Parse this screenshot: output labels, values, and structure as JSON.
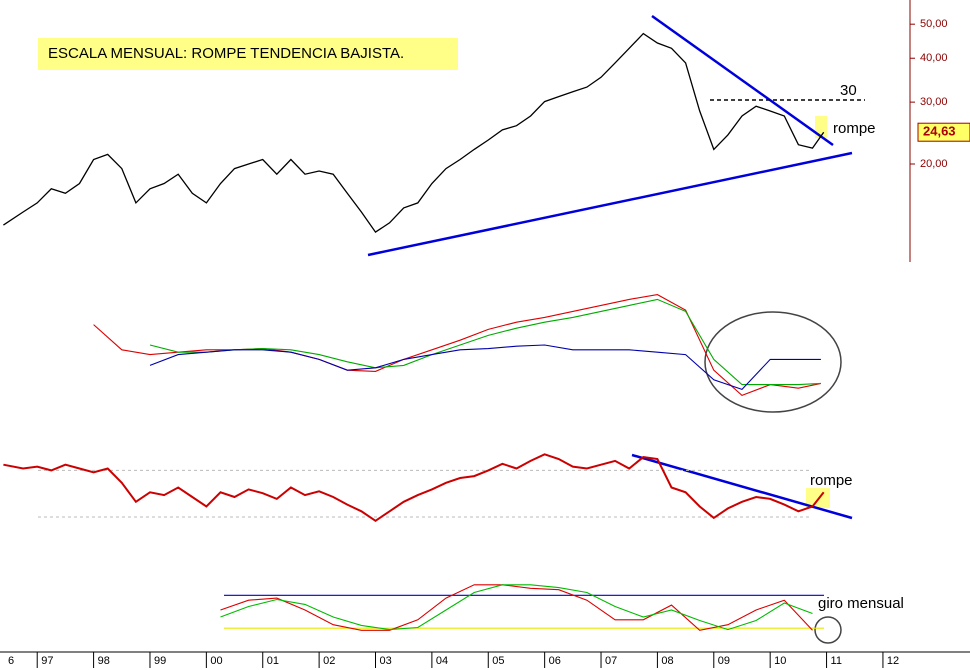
{
  "chart_data": [
    {
      "type": "line",
      "log_scale": true,
      "title": "ESCALA MENSUAL: ROMPE TENDENCIA BAJISTA.",
      "annotations": [
        "30",
        "rompe"
      ],
      "xlim": [
        1996.34,
        2012.48
      ],
      "ylim": [
        10.8,
        56.7
      ],
      "yticks": [
        {
          "value": 50,
          "label": "50,00"
        },
        {
          "value": 40,
          "label": "40,00"
        },
        {
          "value": 30,
          "label": "30,00"
        },
        {
          "value": 20,
          "label": "20,00"
        }
      ],
      "last_value_label": "24,63",
      "x": [
        1996.4,
        1996.75,
        1997,
        1997.25,
        1997.5,
        1997.75,
        1998,
        1998.25,
        1998.5,
        1998.75,
        1999,
        1999.25,
        1999.5,
        1999.75,
        2000,
        2000.25,
        2000.5,
        2000.75,
        2001,
        2001.25,
        2001.5,
        2001.75,
        2002,
        2002.25,
        2002.5,
        2002.75,
        2003,
        2003.25,
        2003.5,
        2003.75,
        2004,
        2004.25,
        2004.5,
        2004.75,
        2005,
        2005.25,
        2005.5,
        2005.75,
        2006,
        2006.25,
        2006.5,
        2006.75,
        2007,
        2007.25,
        2007.5,
        2007.75,
        2008,
        2008.25,
        2008.5,
        2008.75,
        2009,
        2009.25,
        2009.5,
        2009.75,
        2010,
        2010.25,
        2010.5,
        2010.75,
        2010.95
      ],
      "series": [
        {
          "color": "#000000",
          "values": [
            13.4,
            14.6,
            15.5,
            17.0,
            16.5,
            17.6,
            20.6,
            21.3,
            19.4,
            15.5,
            17.0,
            17.6,
            18.7,
            16.5,
            15.5,
            17.6,
            19.4,
            20.0,
            20.6,
            18.7,
            20.6,
            18.7,
            19.1,
            18.7,
            16.5,
            14.6,
            12.8,
            13.6,
            15.0,
            15.5,
            17.6,
            19.4,
            20.6,
            22.0,
            23.4,
            25.0,
            25.7,
            27.4,
            30.1,
            31.1,
            32.1,
            33.1,
            35.3,
            38.8,
            42.7,
            47.0,
            44.2,
            42.7,
            38.8,
            28.3,
            22.0,
            24.2,
            27.4,
            29.2,
            28.3,
            27.4,
            22.7,
            22.2,
            24.63
          ]
        }
      ]
    },
    {
      "type": "line",
      "xlim": [
        1996.34,
        2012.48
      ],
      "ylim": [
        0,
        100
      ],
      "x": [
        1998,
        1998.5,
        1999,
        1999.5,
        2000,
        2000.5,
        2001,
        2001.5,
        2002,
        2002.5,
        2003,
        2003.5,
        2004,
        2004.5,
        2005,
        2005.5,
        2006,
        2006.5,
        2007,
        2007.5,
        2008,
        2008.5,
        2009,
        2009.5,
        2010,
        2010.5,
        2010.9
      ],
      "series": [
        {
          "color": "#dd0000",
          "values": [
            67,
            46,
            42,
            44,
            46,
            46,
            47,
            44,
            38,
            29,
            28,
            38,
            46,
            54,
            63,
            69,
            73,
            78,
            83,
            88,
            92,
            79,
            29,
            8,
            17,
            14,
            18
          ]
        },
        {
          "color": "#00aa00",
          "values": [
            null,
            null,
            50,
            44,
            44,
            46,
            47,
            46,
            42,
            36,
            31,
            33,
            42,
            50,
            58,
            64,
            69,
            73,
            78,
            83,
            88,
            78,
            38,
            17,
            17,
            17,
            18
          ]
        },
        {
          "color": "#0000aa",
          "values": [
            null,
            null,
            33,
            42,
            44,
            46,
            46,
            44,
            38,
            29,
            31,
            38,
            42,
            46,
            47,
            49,
            50,
            46,
            46,
            46,
            44,
            42,
            21,
            13,
            38,
            38,
            38
          ]
        }
      ]
    },
    {
      "type": "line",
      "annotations": [
        "rompe"
      ],
      "xlim": [
        1996.34,
        2012.48
      ],
      "ylim": [
        0,
        100
      ],
      "levels": [
        {
          "value": 68,
          "color": "#bbbbbb"
        },
        {
          "value": 19,
          "color": "#bbbbbb"
        }
      ],
      "x": [
        1996.4,
        1996.75,
        1997,
        1997.25,
        1997.5,
        1997.75,
        1998,
        1998.25,
        1998.5,
        1998.75,
        1999,
        1999.25,
        1999.5,
        1999.75,
        2000,
        2000.25,
        2000.5,
        2000.75,
        2001,
        2001.25,
        2001.5,
        2001.75,
        2002,
        2002.25,
        2002.5,
        2002.75,
        2003,
        2003.25,
        2003.5,
        2003.75,
        2004,
        2004.25,
        2004.5,
        2004.75,
        2005,
        2005.25,
        2005.5,
        2005.75,
        2006,
        2006.25,
        2006.5,
        2006.75,
        2007,
        2007.25,
        2007.5,
        2007.75,
        2008,
        2008.25,
        2008.5,
        2008.75,
        2009,
        2009.25,
        2009.5,
        2009.75,
        2010,
        2010.25,
        2010.5,
        2010.75,
        2010.95
      ],
      "series": [
        {
          "color": "#cc0000",
          "values": [
            74,
            70,
            72,
            68,
            74,
            70,
            66,
            70,
            55,
            35,
            45,
            42,
            50,
            40,
            30,
            45,
            40,
            48,
            44,
            38,
            50,
            42,
            46,
            40,
            32,
            25,
            15,
            25,
            35,
            42,
            48,
            55,
            60,
            62,
            68,
            75,
            70,
            78,
            85,
            80,
            72,
            70,
            74,
            78,
            70,
            82,
            80,
            50,
            45,
            30,
            18,
            28,
            35,
            40,
            38,
            32,
            25,
            30,
            45
          ]
        }
      ]
    },
    {
      "type": "line",
      "annotations": [
        "giro mensual"
      ],
      "xlim": [
        1996.34,
        2012.48
      ],
      "ylim": [
        0,
        100
      ],
      "levels": [
        {
          "value": 71,
          "color": "#0000cc"
        },
        {
          "value": 24,
          "color": "#e8e800"
        }
      ],
      "xticks": [
        {
          "value": 1996,
          "label": "6"
        },
        {
          "value": 1997,
          "label": "97"
        },
        {
          "value": 1998,
          "label": "98"
        },
        {
          "value": 1999,
          "label": "99"
        },
        {
          "value": 2000,
          "label": "00"
        },
        {
          "value": 2001,
          "label": "01"
        },
        {
          "value": 2002,
          "label": "02"
        },
        {
          "value": 2003,
          "label": "03"
        },
        {
          "value": 2004,
          "label": "04"
        },
        {
          "value": 2005,
          "label": "05"
        },
        {
          "value": 2006,
          "label": "06"
        },
        {
          "value": 2007,
          "label": "07"
        },
        {
          "value": 2008,
          "label": "08"
        },
        {
          "value": 2009,
          "label": "09"
        },
        {
          "value": 2010,
          "label": "10"
        },
        {
          "value": 2011,
          "label": "11"
        },
        {
          "value": 2012,
          "label": "12"
        }
      ],
      "x": [
        2000.25,
        2000.75,
        2001.25,
        2001.75,
        2002.25,
        2002.75,
        2003.25,
        2003.75,
        2004.25,
        2004.75,
        2005.25,
        2005.75,
        2006.25,
        2006.75,
        2007.25,
        2007.75,
        2008.25,
        2008.75,
        2009.25,
        2009.75,
        2010.25,
        2010.75
      ],
      "series": [
        {
          "color": "#dd0000",
          "values": [
            50,
            64,
            67,
            50,
            29,
            21,
            21,
            36,
            67,
            86,
            86,
            81,
            79,
            64,
            36,
            36,
            57,
            21,
            29,
            50,
            64,
            21
          ]
        },
        {
          "color": "#00bb00",
          "values": [
            40,
            55,
            65,
            58,
            40,
            28,
            22,
            25,
            50,
            75,
            86,
            86,
            82,
            75,
            55,
            40,
            50,
            35,
            22,
            35,
            60,
            45
          ]
        }
      ]
    }
  ]
}
